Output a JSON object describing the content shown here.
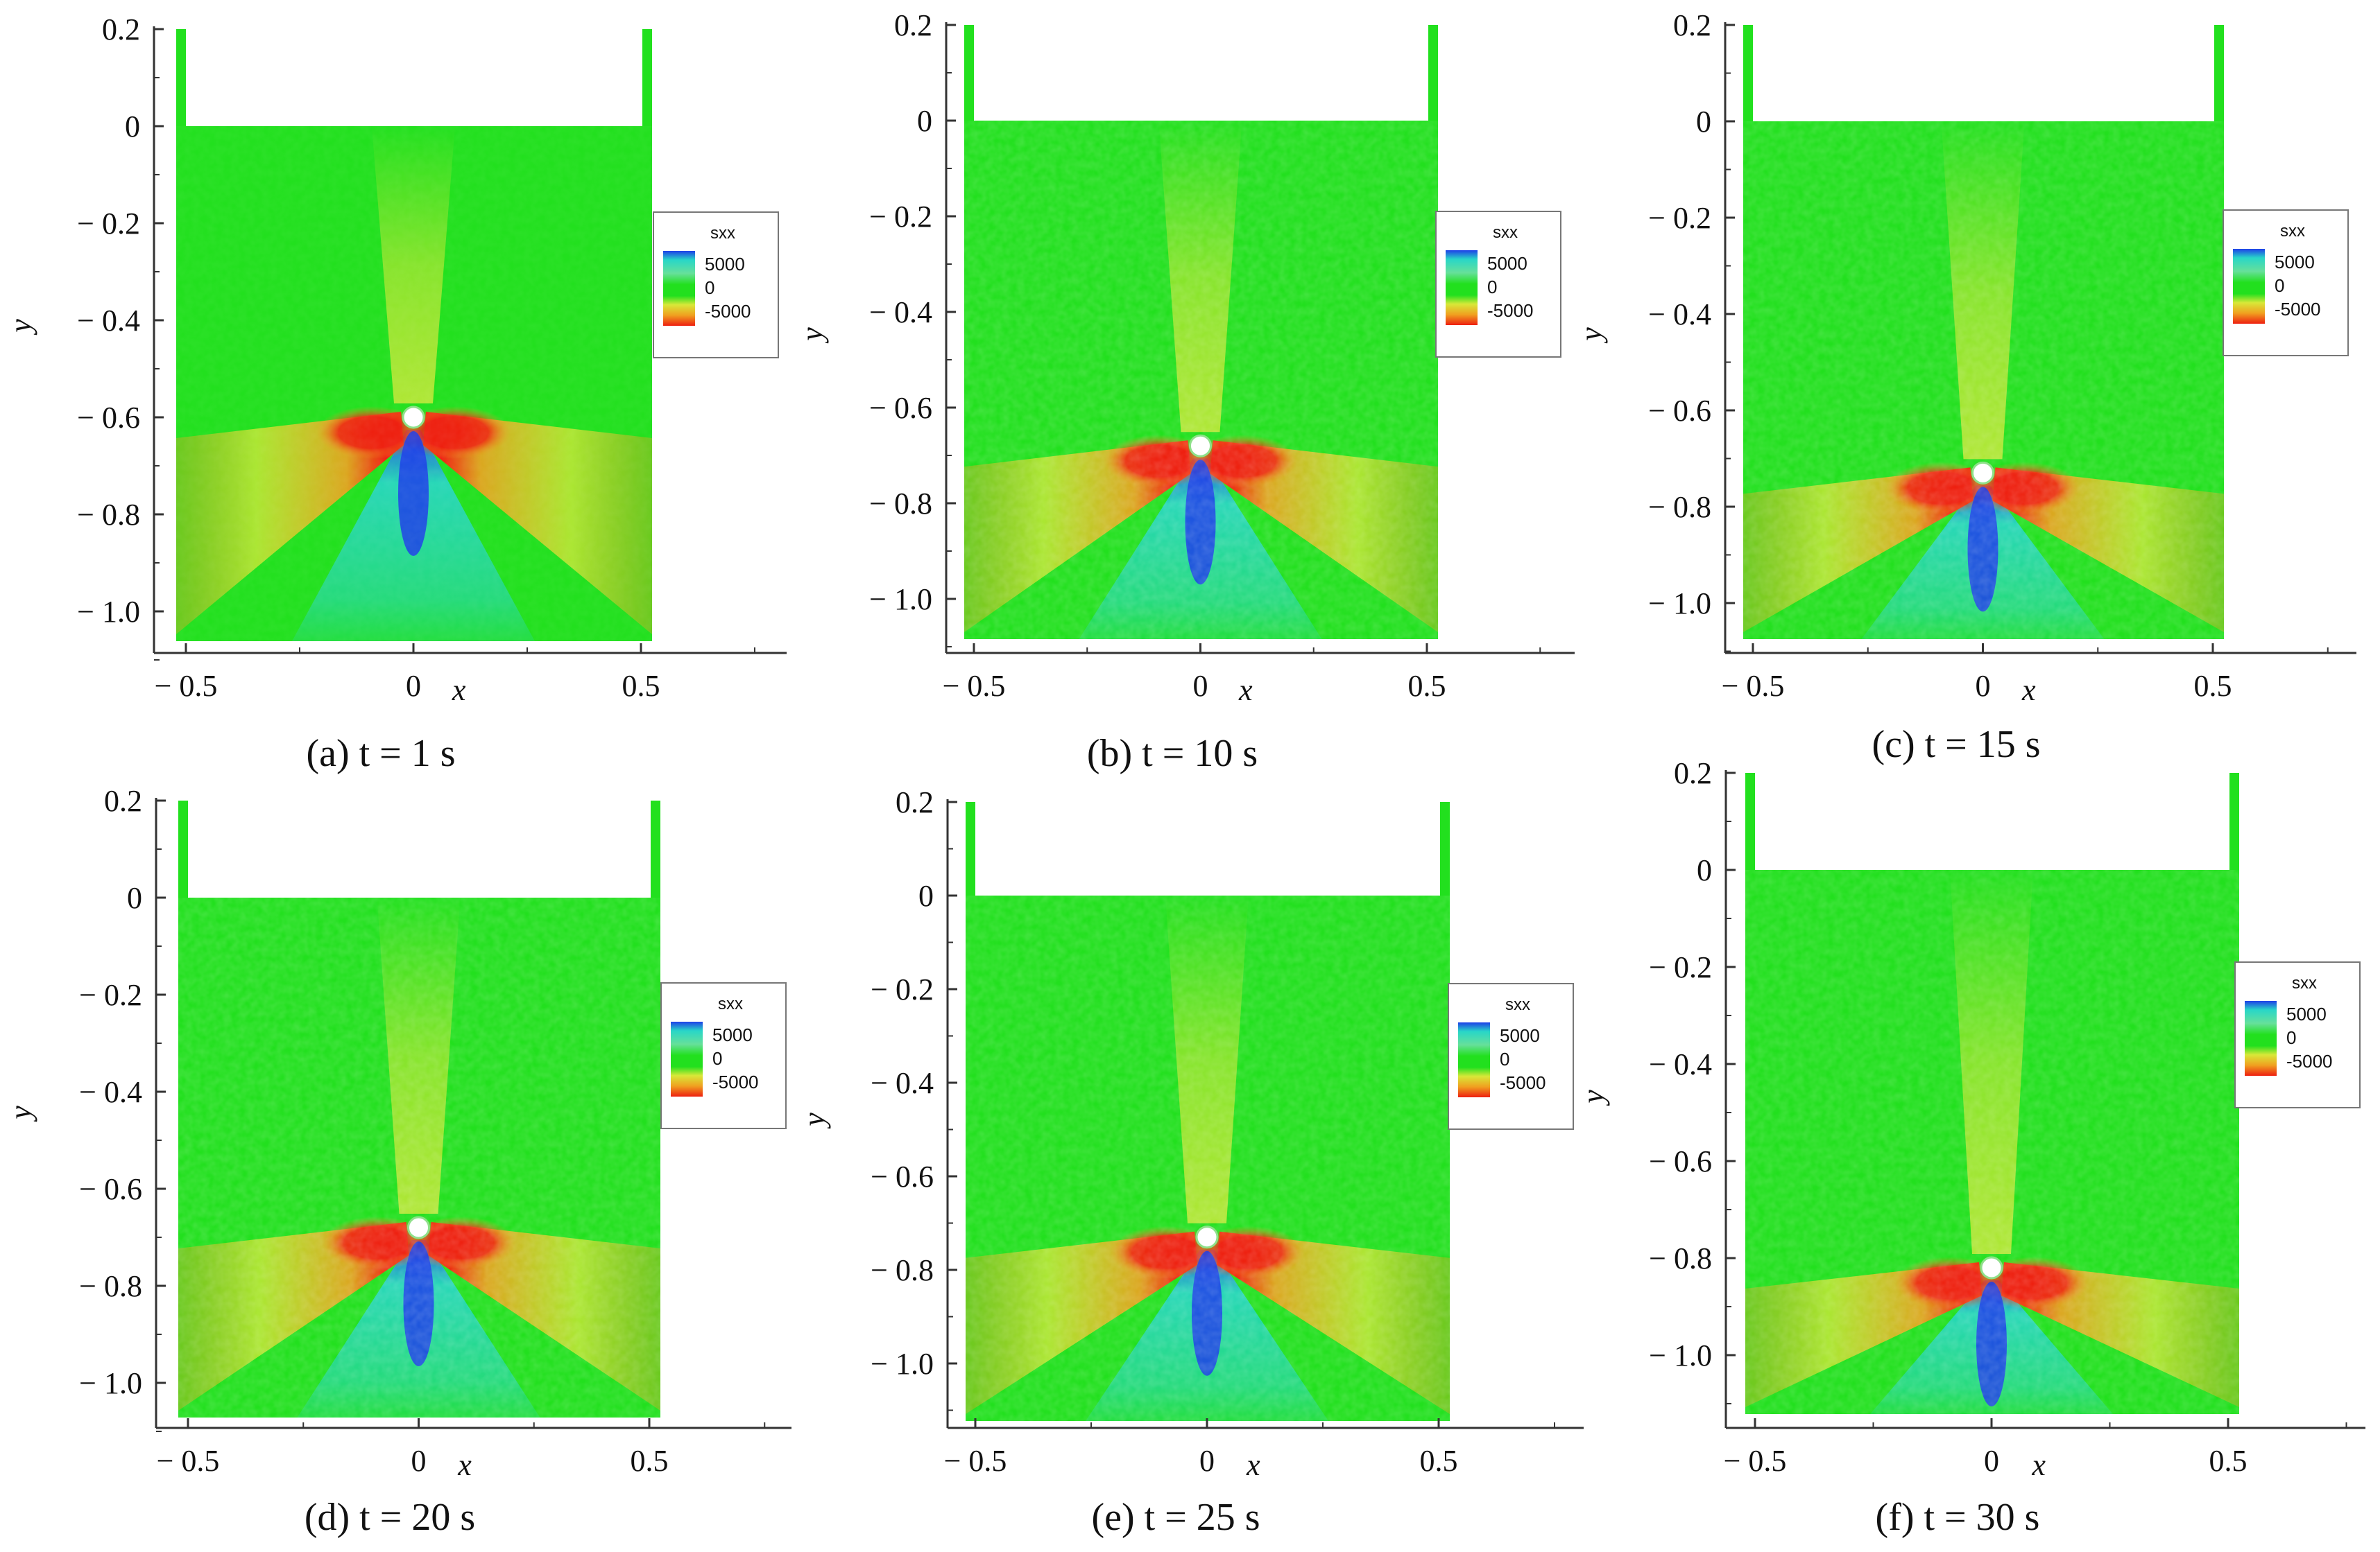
{
  "legend_title": "sxx",
  "legend_labels": [
    "5000",
    "0",
    "-5000"
  ],
  "colors": {
    "background_green": "#22e01e",
    "yellow": "#d8e838",
    "orange": "#f0a020",
    "red": "#ee2010",
    "cyan": "#28d6c8",
    "blue": "#1e40e8",
    "axis": "#333333"
  },
  "chart_data": [
    {
      "type": "heatmap",
      "caption": "(a) t = 1 s",
      "xlabel": "x",
      "ylabel": "y",
      "xlim": [
        -0.55,
        0.85
      ],
      "ylim": [
        -1.15,
        0.22
      ],
      "xticks": [
        "− 0.5",
        "0",
        "0.5"
      ],
      "yticks": [
        "0.2",
        "0",
        "− 0.2",
        "− 0.4",
        "− 0.6",
        "− 0.8",
        "− 1.0"
      ],
      "hole_y": -0.6,
      "soil_top_y": 0.0,
      "legend_title": "sxx",
      "legend_labels": [
        "5000",
        "0",
        "-5000"
      ]
    },
    {
      "type": "heatmap",
      "caption": "(b) t = 10 s",
      "xlabel": "x",
      "ylabel": "y",
      "xlim": [
        -0.55,
        0.85
      ],
      "ylim": [
        -1.15,
        0.22
      ],
      "xticks": [
        "− 0.5",
        "0",
        "0.5"
      ],
      "yticks": [
        "0.2",
        "0",
        "− 0.2",
        "− 0.4",
        "− 0.6",
        "− 0.8",
        "− 1.0"
      ],
      "hole_y": -0.68,
      "soil_top_y": 0.0,
      "legend_title": "sxx",
      "legend_labels": [
        "5000",
        "0",
        "-5000"
      ]
    },
    {
      "type": "heatmap",
      "caption": "(c) t = 15 s",
      "xlabel": "x",
      "ylabel": "y",
      "xlim": [
        -0.55,
        0.85
      ],
      "ylim": [
        -1.15,
        0.22
      ],
      "xticks": [
        "− 0.5",
        "0",
        "0.5"
      ],
      "yticks": [
        "0.2",
        "0",
        "− 0.2",
        "− 0.4",
        "− 0.6",
        "− 0.8",
        "− 1.0"
      ],
      "hole_y": -0.73,
      "soil_top_y": 0.0,
      "legend_title": "sxx",
      "legend_labels": [
        "5000",
        "0",
        "-5000"
      ]
    },
    {
      "type": "heatmap",
      "caption": "(d) t = 20 s",
      "xlabel": "x",
      "ylabel": "y",
      "xlim": [
        -0.55,
        0.85
      ],
      "ylim": [
        -1.15,
        0.22
      ],
      "xticks": [
        "− 0.5",
        "0",
        "0.5"
      ],
      "yticks": [
        "0.2",
        "0",
        "− 0.2",
        "− 0.4",
        "− 0.6",
        "− 0.8",
        "− 1.0"
      ],
      "hole_y": -0.68,
      "soil_top_y": 0.0,
      "legend_title": "sxx",
      "legend_labels": [
        "5000",
        "0",
        "-5000"
      ]
    },
    {
      "type": "heatmap",
      "caption": "(e) t = 25 s",
      "xlabel": "x",
      "ylabel": "y",
      "xlim": [
        -0.55,
        0.85
      ],
      "ylim": [
        -1.15,
        0.22
      ],
      "xticks": [
        "− 0.5",
        "0",
        "0.5"
      ],
      "yticks": [
        "0.2",
        "0",
        "− 0.2",
        "− 0.4",
        "− 0.6",
        "− 0.8",
        "− 1.0"
      ],
      "hole_y": -0.73,
      "soil_top_y": 0.0,
      "legend_title": "sxx",
      "legend_labels": [
        "5000",
        "0",
        "-5000"
      ]
    },
    {
      "type": "heatmap",
      "caption": "(f) t = 30 s",
      "xlabel": "x",
      "ylabel": "y",
      "xlim": [
        -0.55,
        0.85
      ],
      "ylim": [
        -1.15,
        0.22
      ],
      "xticks": [
        "− 0.5",
        "0",
        "0.5"
      ],
      "yticks": [
        "0.2",
        "0",
        "− 0.2",
        "− 0.4",
        "− 0.6",
        "− 0.8",
        "− 1.0"
      ],
      "hole_y": -0.82,
      "soil_top_y": 0.0,
      "legend_title": "sxx",
      "legend_labels": [
        "5000",
        "0",
        "-5000"
      ]
    }
  ]
}
